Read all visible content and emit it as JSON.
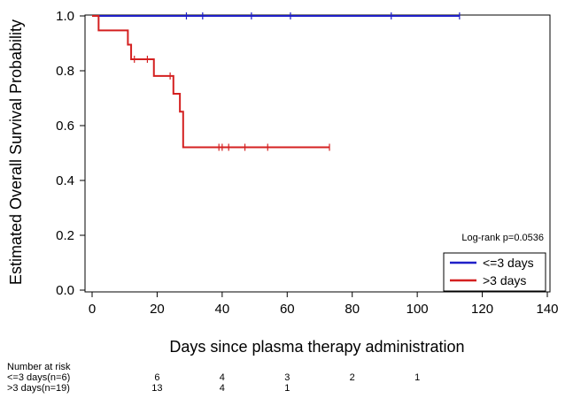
{
  "chart_data": {
    "type": "line",
    "xlabel": "Days since plasma therapy administration",
    "ylabel": "Estimated Overall Survival Probability",
    "xlim": [
      0,
      140
    ],
    "ylim": [
      0.0,
      1.0
    ],
    "xticks": [
      0,
      20,
      40,
      60,
      80,
      100,
      120,
      140
    ],
    "xtick_labels": [
      "0",
      "20",
      "40",
      "60",
      "80",
      "100",
      "120",
      "140"
    ],
    "yticks": [
      0.0,
      0.2,
      0.4,
      0.6,
      0.8,
      1.0
    ],
    "ytick_labels": [
      "0.0",
      "0.2",
      "0.4",
      "0.6",
      "0.8",
      "1.0"
    ],
    "grid": false,
    "legend_position": "bottom-right",
    "annotation": "Log-rank p=0.0536",
    "series": [
      {
        "name": "<=3 days",
        "color": "#1f1fc8",
        "step_points": [
          [
            0,
            1.0
          ],
          [
            113,
            1.0
          ]
        ],
        "censor_times": [
          29,
          34,
          49,
          61,
          92,
          113
        ]
      },
      {
        "name": ">3 days",
        "color": "#d42020",
        "step_points": [
          [
            0,
            1.0
          ],
          [
            2,
            0.947
          ],
          [
            11,
            0.895
          ],
          [
            12,
            0.842
          ],
          [
            19,
            0.781
          ],
          [
            25,
            0.716
          ],
          [
            27,
            0.651
          ],
          [
            28,
            0.521
          ],
          [
            73,
            0.521
          ]
        ],
        "censor_times": [
          13,
          17,
          24,
          39,
          40,
          42,
          47,
          54,
          73
        ]
      }
    ],
    "risk_table": {
      "title": "Number at risk",
      "rows": [
        {
          "label": "<=3 days(n=6)",
          "counts": [
            "6",
            "4",
            "3",
            "2",
            "1"
          ]
        },
        {
          "label": ">3 days(n=19)",
          "counts": [
            "13",
            "4",
            "1",
            "",
            ""
          ]
        }
      ],
      "times": [
        20,
        40,
        60,
        80,
        100
      ]
    }
  }
}
